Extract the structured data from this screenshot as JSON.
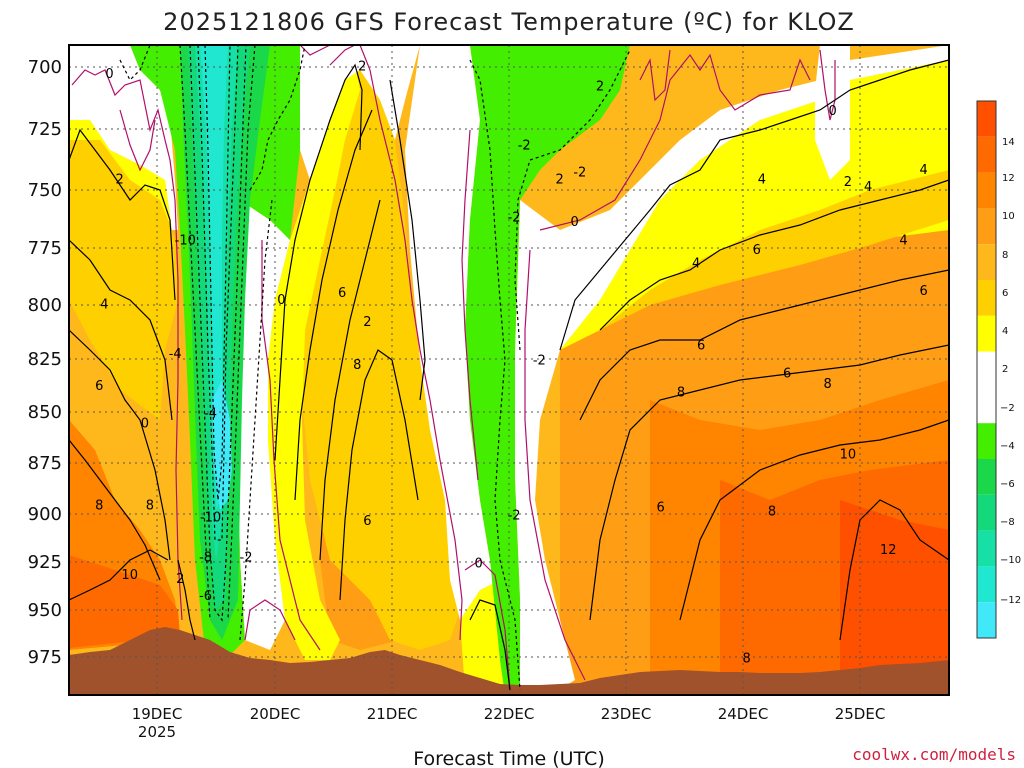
{
  "title": "2025121806 GFS Forecast Temperature (ºC) for KLOZ",
  "credit": "coolwx.com/models",
  "chart_data": {
    "type": "heatmap",
    "title": "2025121806 GFS Forecast Temperature (ºC) for KLOZ",
    "xlabel": "Forecast Time (UTC)",
    "ylabel": "",
    "y_ticks": [
      "700",
      "725",
      "750",
      "775",
      "800",
      "825",
      "850",
      "875",
      "900",
      "925",
      "950",
      "975"
    ],
    "y_range": [
      690,
      990
    ],
    "x_ticks": [
      {
        "label": "19DEC",
        "sublabel": "2025"
      },
      {
        "label": "20DEC",
        "sublabel": ""
      },
      {
        "label": "21DEC",
        "sublabel": ""
      },
      {
        "label": "22DEC",
        "sublabel": ""
      },
      {
        "label": "23DEC",
        "sublabel": ""
      },
      {
        "label": "24DEC",
        "sublabel": ""
      },
      {
        "label": "25DEC",
        "sublabel": ""
      }
    ],
    "x_range_hours": [
      6,
      180
    ],
    "colorbar": {
      "ticks": [
        "14",
        "12",
        "10",
        "8",
        "6",
        "4",
        "2",
        "−2",
        "−4",
        "−6",
        "−8",
        "−10",
        "−12"
      ],
      "bands": [
        {
          "from": 14,
          "to": 16,
          "color": "#ff5000"
        },
        {
          "from": 12,
          "to": 14,
          "color": "#ff6a00"
        },
        {
          "from": 10,
          "to": 12,
          "color": "#ff8400"
        },
        {
          "from": 8,
          "to": 10,
          "color": "#ff9e14"
        },
        {
          "from": 6,
          "to": 8,
          "color": "#ffb81c"
        },
        {
          "from": 4,
          "to": 6,
          "color": "#ffd000"
        },
        {
          "from": 2,
          "to": 4,
          "color": "#ffff00"
        },
        {
          "from": -2,
          "to": 2,
          "color": "#ffffff"
        },
        {
          "from": -4,
          "to": -2,
          "color": "#44ee00"
        },
        {
          "from": -6,
          "to": -4,
          "color": "#1ad84a"
        },
        {
          "from": -8,
          "to": -6,
          "color": "#14d97a"
        },
        {
          "from": -10,
          "to": -8,
          "color": "#16e0a6"
        },
        {
          "from": -12,
          "to": -10,
          "color": "#20e8d0"
        },
        {
          "from": -14,
          "to": -12,
          "color": "#40e8f8"
        }
      ]
    },
    "contour_labels": [
      {
        "text": "0",
        "hour": 14.0,
        "p": 703
      },
      {
        "text": "2",
        "hour": 64.0,
        "p": 700
      },
      {
        "text": "2",
        "hour": 111.0,
        "p": 708
      },
      {
        "text": "0",
        "hour": 157.0,
        "p": 718
      },
      {
        "text": "-2",
        "hour": 96.0,
        "p": 732
      },
      {
        "text": "-2",
        "hour": 107.0,
        "p": 743
      },
      {
        "text": "2",
        "hour": 103.0,
        "p": 746
      },
      {
        "text": "2",
        "hour": 16.0,
        "p": 746
      },
      {
        "text": "4",
        "hour": 143.0,
        "p": 746
      },
      {
        "text": "2",
        "hour": 160.0,
        "p": 747
      },
      {
        "text": "4",
        "hour": 164.0,
        "p": 749
      },
      {
        "text": "4",
        "hour": 175.0,
        "p": 742
      },
      {
        "text": "-2",
        "hour": 94.0,
        "p": 762
      },
      {
        "text": "0",
        "hour": 106.0,
        "p": 764
      },
      {
        "text": "-10",
        "hour": 29.0,
        "p": 772
      },
      {
        "text": "4",
        "hour": 171.0,
        "p": 772
      },
      {
        "text": "6",
        "hour": 142.0,
        "p": 776
      },
      {
        "text": "4",
        "hour": 130.0,
        "p": 782
      },
      {
        "text": "6",
        "hour": 175.0,
        "p": 794
      },
      {
        "text": "6",
        "hour": 60.0,
        "p": 795
      },
      {
        "text": "0",
        "hour": 48.0,
        "p": 798
      },
      {
        "text": "4",
        "hour": 13.0,
        "p": 800
      },
      {
        "text": "2",
        "hour": 65.0,
        "p": 808
      },
      {
        "text": "-4",
        "hour": 27.0,
        "p": 823
      },
      {
        "text": "6",
        "hour": 131.0,
        "p": 819
      },
      {
        "text": "-2",
        "hour": 99.0,
        "p": 826
      },
      {
        "text": "8",
        "hour": 63.0,
        "p": 828
      },
      {
        "text": "6",
        "hour": 148.0,
        "p": 832
      },
      {
        "text": "6",
        "hour": 12.0,
        "p": 838
      },
      {
        "text": "8",
        "hour": 156.0,
        "p": 837
      },
      {
        "text": "8",
        "hour": 127.0,
        "p": 841
      },
      {
        "text": "-4",
        "hour": 34.0,
        "p": 851
      },
      {
        "text": "0",
        "hour": 21.0,
        "p": 856
      },
      {
        "text": "10",
        "hour": 160.0,
        "p": 871
      },
      {
        "text": "8",
        "hour": 12.0,
        "p": 896
      },
      {
        "text": "8",
        "hour": 22.0,
        "p": 896
      },
      {
        "text": "6",
        "hour": 123.0,
        "p": 897
      },
      {
        "text": "8",
        "hour": 145.0,
        "p": 899
      },
      {
        "text": "-10",
        "hour": 34.0,
        "p": 902
      },
      {
        "text": "-2",
        "hour": 94.0,
        "p": 901
      },
      {
        "text": "6",
        "hour": 65.0,
        "p": 904
      },
      {
        "text": "12",
        "hour": 168.0,
        "p": 919
      },
      {
        "text": "-8",
        "hour": 33.0,
        "p": 923
      },
      {
        "text": "-2",
        "hour": 41.0,
        "p": 923
      },
      {
        "text": "0",
        "hour": 87.0,
        "p": 926
      },
      {
        "text": "10",
        "hour": 18.0,
        "p": 932
      },
      {
        "text": "2",
        "hour": 28.0,
        "p": 934
      },
      {
        "text": "-6",
        "hour": 33.0,
        "p": 943
      },
      {
        "text": "8",
        "hour": 140.0,
        "p": 976
      }
    ]
  }
}
